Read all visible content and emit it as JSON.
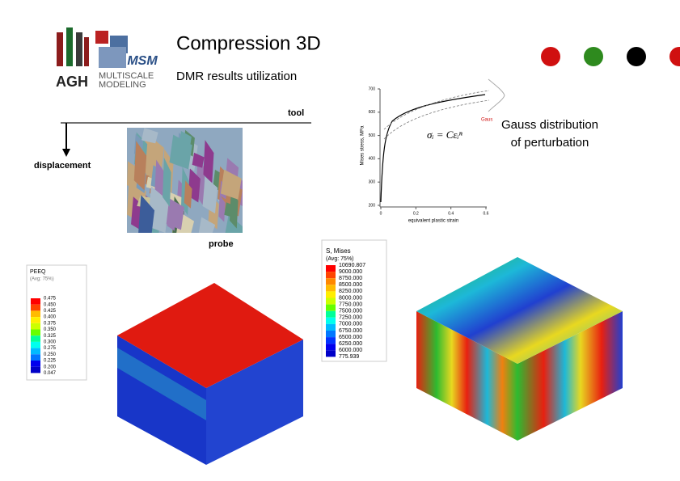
{
  "header": {
    "title": "Compression 3D",
    "subtitle": "DMR results utilization",
    "logo_left": "AGH",
    "logo_mark": "MSM",
    "logo_line1": "MULTISCALE",
    "logo_line2": "MODELING"
  },
  "schematic": {
    "tool": "tool",
    "displacement": "displacement",
    "probe": "probe"
  },
  "plot": {
    "ylabel": "Mises stress, MPa",
    "xlabel": "equivalent plastic strain",
    "formula": "σᵢ = Cεᵢⁿ",
    "legend": "Gaus",
    "yticks": [
      200,
      300,
      400,
      500,
      600,
      700
    ],
    "xticks": [
      0,
      0.2,
      0.4,
      0.6
    ],
    "annotation": [
      "Gauss distribution",
      "of perturbation"
    ]
  },
  "legend_peeq": {
    "title": "PEEQ",
    "subtitle": "(Avg: 75%)",
    "labels": [
      "0.475",
      "0.450",
      "0.425",
      "0.400",
      "0.375",
      "0.350",
      "0.325",
      "0.300",
      "0.275",
      "0.250",
      "0.225",
      "0.200",
      "0.047"
    ]
  },
  "legend_mises": {
    "title": "S, Mises",
    "subtitle": "(Avg: 75%)",
    "labels": [
      "10690.807",
      "9000.000",
      "8750.000",
      "8500.000",
      "8250.000",
      "8000.000",
      "7750.000",
      "7500.000",
      "7250.000",
      "7000.000",
      "6750.000",
      "6500.000",
      "6250.000",
      "6000.000",
      "775.939"
    ]
  }
}
